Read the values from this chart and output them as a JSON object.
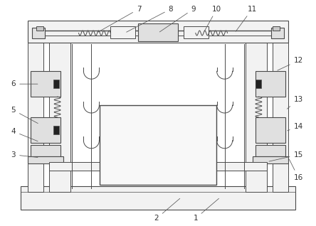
{
  "bg_color": "#ffffff",
  "line_color": "#4a4a4a",
  "fill_light": "#f2f2f2",
  "fill_mid": "#e0e0e0",
  "fill_dark": "#c8c8c8",
  "label_color": "#333333",
  "figsize": [
    4.44,
    3.18
  ],
  "dpi": 100
}
